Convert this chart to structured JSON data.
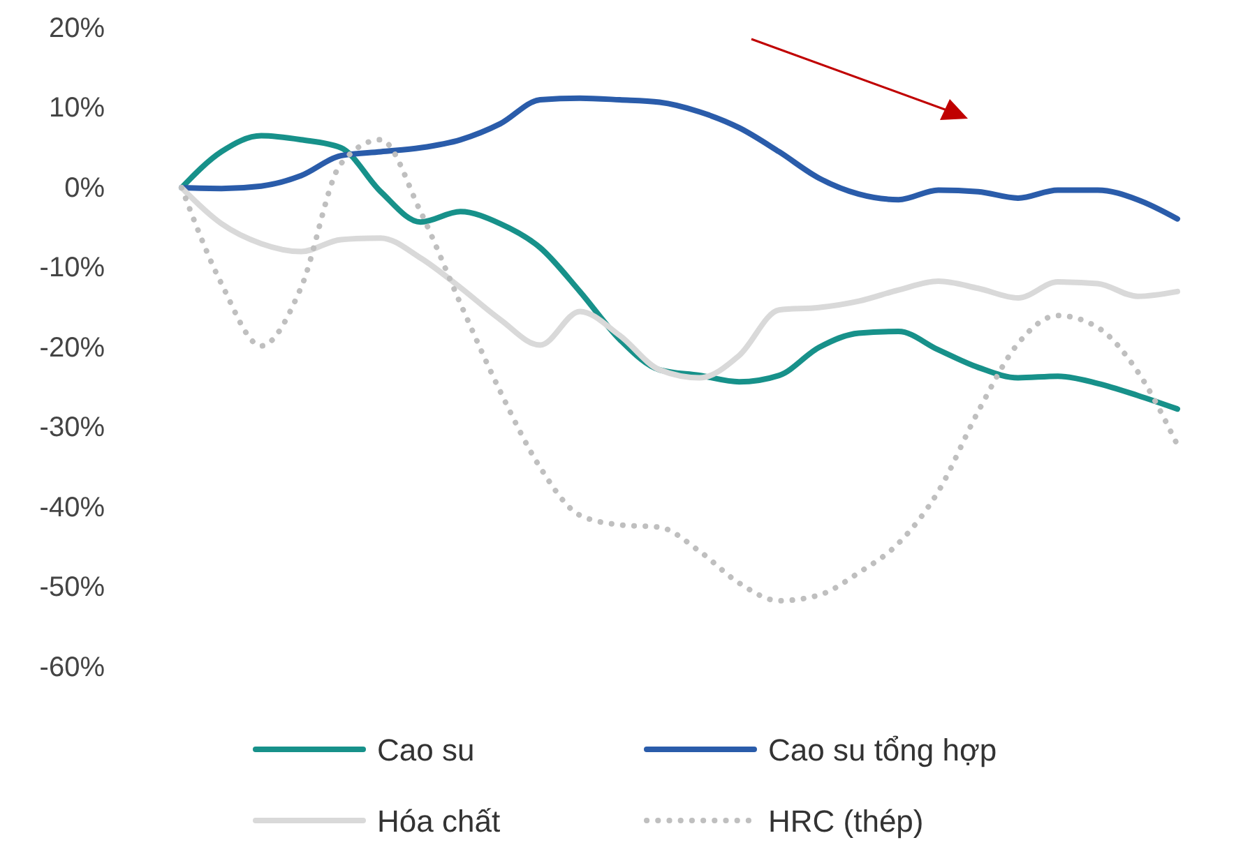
{
  "chart_data": {
    "type": "line",
    "categories": [
      null,
      null,
      null,
      null,
      null,
      null,
      null,
      null,
      null,
      null,
      null,
      null,
      null,
      null,
      null,
      null,
      null,
      null,
      null,
      null,
      null,
      null,
      null,
      null,
      null,
      null
    ],
    "series": [
      {
        "name": "Cao su",
        "color": "#17918a",
        "line_style": "solid",
        "values": [
          0,
          4.5,
          6.5,
          6,
          5,
          -0.5,
          -4.3,
          -3,
          -4.5,
          -7.5,
          -13,
          -19,
          -22.8,
          -23.5,
          -24.3,
          -23.5,
          -20,
          -18.2,
          -18,
          -20.3,
          -22.5,
          -23.8,
          -23.6,
          -24.5,
          -26,
          -27.7
        ]
      },
      {
        "name": "Cao su tổng hợp",
        "color": "#2a5caa",
        "line_style": "solid",
        "values": [
          0,
          -0.1,
          0.2,
          1.5,
          4,
          4.5,
          5,
          6,
          8,
          11,
          11.2,
          11,
          10.7,
          9.5,
          7.5,
          4.5,
          1.2,
          -0.8,
          -1.5,
          -0.3,
          -0.5,
          -1.3,
          -0.3,
          -0.3,
          -1.5,
          -3.9
        ]
      },
      {
        "name": "Hóa chất",
        "color": "#d9d9d9",
        "line_style": "solid",
        "values": [
          0,
          -4.5,
          -7,
          -8,
          -6.5,
          -6.3,
          -8.8,
          -12.5,
          -16.5,
          -19.7,
          -15.5,
          -18.5,
          -22.8,
          -23.8,
          -21,
          -15.3,
          -15,
          -14.2,
          -12.8,
          -11.7,
          -12.6,
          -13.8,
          -11.8,
          -12,
          -13.6,
          -13
        ]
      },
      {
        "name": "HRC (thép)",
        "color": "#bfbfbf",
        "line_style": "dotted",
        "values": [
          0,
          -12,
          -19.8,
          -12.5,
          3,
          6,
          -3,
          -14.5,
          -25.5,
          -35,
          -41,
          -42.2,
          -42.5,
          -45.5,
          -49.5,
          -51.7,
          -51,
          -48.2,
          -44.5,
          -38,
          -28,
          -19.5,
          -16,
          -17.5,
          -23,
          -32.2
        ]
      }
    ],
    "ylim": [
      -60,
      20
    ],
    "yticks": [
      {
        "value": 20,
        "label": "20%"
      },
      {
        "value": 10,
        "label": "10%"
      },
      {
        "value": 0,
        "label": "0%"
      },
      {
        "value": -10,
        "label": "-10%"
      },
      {
        "value": -20,
        "label": "-20%"
      },
      {
        "value": -30,
        "label": "-30%"
      },
      {
        "value": -40,
        "label": "-40%"
      },
      {
        "value": -50,
        "label": "-50%"
      },
      {
        "value": -60,
        "label": "-60%"
      }
    ],
    "grid": false,
    "legend": "bottom",
    "marker": "none"
  }
}
